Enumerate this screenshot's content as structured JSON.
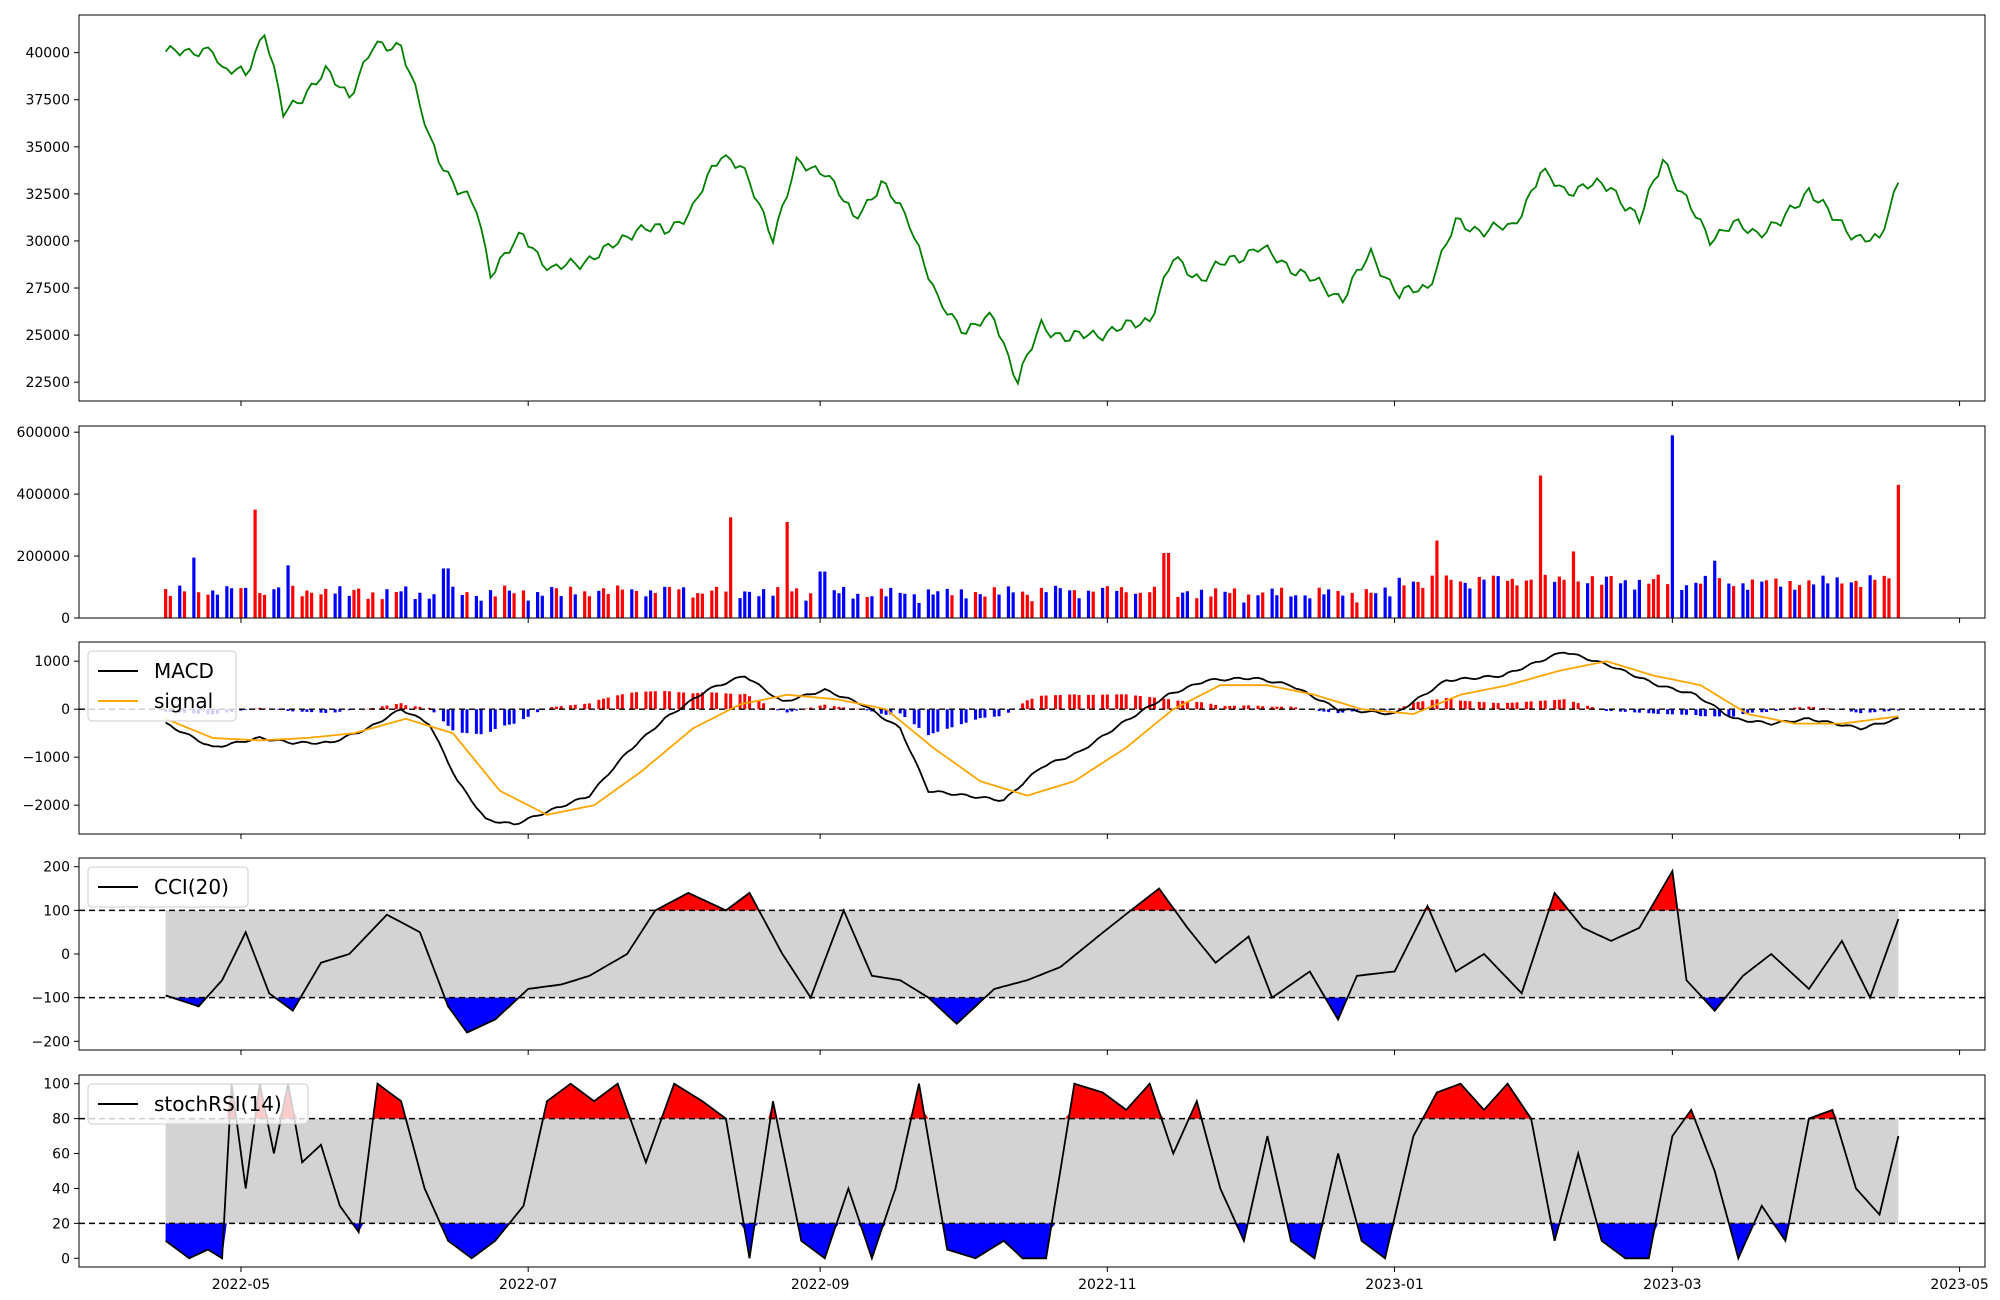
{
  "chart_data": [
    {
      "type": "line",
      "panel": "price",
      "ylim": [
        21500,
        42000
      ],
      "yticks": [
        22500,
        25000,
        27500,
        30000,
        32500,
        35000,
        37500,
        40000
      ],
      "ytick_labels": [
        "22500",
        "25000",
        "27500",
        "30000",
        "32500",
        "35000",
        "37500",
        "40000"
      ],
      "color": "#008000",
      "series": [
        {
          "x_dates": [
            "2022-04-15",
            "2022-04-20",
            "2022-04-25",
            "2022-04-27",
            "2022-05-02",
            "2022-05-06",
            "2022-05-10",
            "2022-05-15",
            "2022-05-19",
            "2022-05-24",
            "2022-05-29",
            "2022-06-04",
            "2022-06-10",
            "2022-06-16",
            "2022-06-20",
            "2022-06-23",
            "2022-06-30",
            "2022-07-06",
            "2022-07-12",
            "2022-07-18",
            "2022-07-24",
            "2022-07-30",
            "2022-08-05",
            "2022-08-11",
            "2022-08-15",
            "2022-08-22",
            "2022-08-27",
            "2022-09-02",
            "2022-09-08",
            "2022-09-14",
            "2022-09-20",
            "2022-09-26",
            "2022-10-02",
            "2022-10-08",
            "2022-10-13",
            "2022-10-18",
            "2022-10-24",
            "2022-10-30",
            "2022-11-05",
            "2022-11-10",
            "2022-11-15",
            "2022-11-21",
            "2022-11-27",
            "2022-12-03",
            "2022-12-09",
            "2022-12-15",
            "2022-12-21",
            "2022-12-27",
            "2023-01-02",
            "2023-01-08",
            "2023-01-14",
            "2023-01-20",
            "2023-01-26",
            "2023-02-01",
            "2023-02-06",
            "2023-02-11",
            "2023-02-16",
            "2023-02-22",
            "2023-02-27",
            "2023-03-03",
            "2023-03-09",
            "2023-03-14",
            "2023-03-19",
            "2023-03-24",
            "2023-03-30",
            "2023-04-04",
            "2023-04-09",
            "2023-04-14",
            "2023-04-18"
          ],
          "values": [
            40300,
            39800,
            40400,
            39000,
            38900,
            41200,
            36700,
            38000,
            38900,
            37800,
            40200,
            40500,
            35400,
            32700,
            31700,
            28400,
            30300,
            28400,
            28900,
            29500,
            30700,
            30500,
            31700,
            34700,
            34000,
            30300,
            34000,
            33800,
            31200,
            33000,
            31100,
            26700,
            25300,
            25900,
            22600,
            25500,
            24800,
            25100,
            25400,
            25900,
            29000,
            28000,
            29000,
            29600,
            28800,
            27800,
            27000,
            29300,
            27100,
            27600,
            30900,
            30600,
            30700,
            33600,
            32700,
            32900,
            32900,
            31000,
            34500,
            32400,
            30200,
            30800,
            30500,
            30900,
            32800,
            31200,
            30300,
            29900,
            33300
          ]
        }
      ]
    },
    {
      "type": "bar",
      "panel": "volume",
      "ylim": [
        0,
        620000
      ],
      "yticks": [
        0,
        200000,
        400000,
        600000
      ],
      "ytick_labels": [
        "0",
        "200000",
        "400000",
        "600000"
      ],
      "up_color": "#ff0000",
      "down_color": "#0000ff",
      "highlights": [
        {
          "date": "2022-04-22",
          "value": 195000,
          "dir": "down"
        },
        {
          "date": "2022-05-05",
          "value": 350000,
          "dir": "up"
        },
        {
          "date": "2022-05-12",
          "value": 170000,
          "dir": "down"
        },
        {
          "date": "2022-06-13",
          "value": 160000,
          "dir": "down"
        },
        {
          "date": "2022-08-14",
          "value": 325000,
          "dir": "up"
        },
        {
          "date": "2022-08-26",
          "value": 310000,
          "dir": "up"
        },
        {
          "date": "2022-09-01",
          "value": 150000,
          "dir": "down"
        },
        {
          "date": "2022-11-13",
          "value": 210000,
          "dir": "up"
        },
        {
          "date": "2023-01-11",
          "value": 250000,
          "dir": "up"
        },
        {
          "date": "2023-02-02",
          "value": 460000,
          "dir": "up"
        },
        {
          "date": "2023-02-09",
          "value": 215000,
          "dir": "up"
        },
        {
          "date": "2023-03-02",
          "value": 590000,
          "dir": "down"
        },
        {
          "date": "2023-03-11",
          "value": 185000,
          "dir": "down"
        },
        {
          "date": "2023-04-18",
          "value": 430000,
          "dir": "up"
        }
      ]
    },
    {
      "type": "line",
      "panel": "macd",
      "ylim": [
        -2600,
        1400
      ],
      "yticks": [
        -2000,
        -1000,
        0,
        1000
      ],
      "ytick_labels": [
        "−2000",
        "−1000",
        "0",
        "1000"
      ],
      "legend": {
        "position": "top-left"
      },
      "series": [
        {
          "name": "MACD",
          "color": "#000000",
          "x_dates": [
            "2022-04-15",
            "2022-04-25",
            "2022-05-05",
            "2022-05-12",
            "2022-05-20",
            "2022-05-28",
            "2022-06-04",
            "2022-06-10",
            "2022-06-16",
            "2022-06-22",
            "2022-06-28",
            "2022-07-06",
            "2022-07-14",
            "2022-07-22",
            "2022-07-30",
            "2022-08-08",
            "2022-08-16",
            "2022-08-24",
            "2022-09-02",
            "2022-09-10",
            "2022-09-18",
            "2022-09-24",
            "2022-10-02",
            "2022-10-10",
            "2022-10-18",
            "2022-10-26",
            "2022-11-04",
            "2022-11-14",
            "2022-11-22",
            "2022-12-02",
            "2022-12-10",
            "2022-12-20",
            "2023-01-01",
            "2023-01-12",
            "2023-01-24",
            "2023-02-06",
            "2023-02-16",
            "2023-02-26",
            "2023-03-06",
            "2023-03-14",
            "2023-03-22",
            "2023-03-30",
            "2023-04-10",
            "2023-04-18"
          ],
          "values": [
            -300,
            -800,
            -600,
            -700,
            -700,
            -400,
            0,
            -300,
            -1500,
            -2300,
            -2400,
            -2100,
            -1800,
            -900,
            -200,
            400,
            700,
            150,
            400,
            100,
            -400,
            -1700,
            -1800,
            -1900,
            -1200,
            -900,
            -300,
            300,
            600,
            650,
            500,
            0,
            -100,
            600,
            700,
            1200,
            900,
            500,
            300,
            -200,
            -300,
            -200,
            -400,
            -200
          ]
        },
        {
          "name": "signal",
          "color": "#ffa500",
          "x_dates": [
            "2022-04-15",
            "2022-04-25",
            "2022-05-05",
            "2022-05-15",
            "2022-05-25",
            "2022-06-05",
            "2022-06-15",
            "2022-06-25",
            "2022-07-05",
            "2022-07-15",
            "2022-07-25",
            "2022-08-05",
            "2022-08-15",
            "2022-08-25",
            "2022-09-05",
            "2022-09-15",
            "2022-09-25",
            "2022-10-05",
            "2022-10-15",
            "2022-10-25",
            "2022-11-05",
            "2022-11-15",
            "2022-11-25",
            "2022-12-05",
            "2022-12-15",
            "2022-12-25",
            "2023-01-05",
            "2023-01-15",
            "2023-01-25",
            "2023-02-05",
            "2023-02-15",
            "2023-02-25",
            "2023-03-07",
            "2023-03-17",
            "2023-03-27",
            "2023-04-06",
            "2023-04-18"
          ],
          "values": [
            -200,
            -600,
            -650,
            -600,
            -500,
            -200,
            -500,
            -1700,
            -2200,
            -2000,
            -1300,
            -400,
            100,
            300,
            200,
            0,
            -800,
            -1500,
            -1800,
            -1500,
            -800,
            0,
            500,
            500,
            300,
            0,
            -100,
            300,
            500,
            800,
            1000,
            700,
            500,
            -100,
            -300,
            -300,
            -150
          ]
        }
      ],
      "histogram_up_color": "#ff0000",
      "histogram_down_color": "#0000ff"
    },
    {
      "type": "line",
      "panel": "cci",
      "ylim": [
        -220,
        220
      ],
      "yticks": [
        -200,
        -100,
        0,
        100,
        200
      ],
      "ytick_labels": [
        "−200",
        "−100",
        "0",
        "100",
        "200"
      ],
      "bands": [
        -100,
        100
      ],
      "legend": {
        "position": "top-left"
      },
      "series": [
        {
          "name": "CCI(20)",
          "color": "#000000",
          "x_dates": [
            "2022-04-15",
            "2022-04-22",
            "2022-04-27",
            "2022-05-02",
            "2022-05-07",
            "2022-05-12",
            "2022-05-18",
            "2022-05-24",
            "2022-06-01",
            "2022-06-08",
            "2022-06-14",
            "2022-06-18",
            "2022-06-24",
            "2022-07-01",
            "2022-07-08",
            "2022-07-14",
            "2022-07-22",
            "2022-07-28",
            "2022-08-04",
            "2022-08-12",
            "2022-08-17",
            "2022-08-24",
            "2022-08-30",
            "2022-09-06",
            "2022-09-12",
            "2022-09-18",
            "2022-09-24",
            "2022-09-30",
            "2022-10-08",
            "2022-10-15",
            "2022-10-22",
            "2022-10-30",
            "2022-11-06",
            "2022-11-12",
            "2022-11-18",
            "2022-11-24",
            "2022-12-01",
            "2022-12-06",
            "2022-12-14",
            "2022-12-20",
            "2022-12-24",
            "2023-01-01",
            "2023-01-08",
            "2023-01-14",
            "2023-01-20",
            "2023-01-28",
            "2023-02-04",
            "2023-02-10",
            "2023-02-16",
            "2023-02-22",
            "2023-03-01",
            "2023-03-04",
            "2023-03-10",
            "2023-03-16",
            "2023-03-22",
            "2023-03-30",
            "2023-04-06",
            "2023-04-12",
            "2023-04-18"
          ],
          "values": [
            -95,
            -120,
            -60,
            50,
            -90,
            -130,
            -20,
            0,
            90,
            50,
            -120,
            -180,
            -150,
            -80,
            -70,
            -50,
            0,
            100,
            140,
            100,
            140,
            0,
            -100,
            100,
            -50,
            -60,
            -100,
            -160,
            -80,
            -60,
            -30,
            40,
            100,
            150,
            60,
            -20,
            40,
            -100,
            -40,
            -150,
            -50,
            -40,
            110,
            -40,
            0,
            -90,
            140,
            60,
            30,
            60,
            190,
            -60,
            -130,
            -50,
            0,
            -80,
            30,
            -100,
            80
          ]
        }
      ],
      "overbought_color": "#ff0000",
      "oversold_color": "#0000ff",
      "band_fill_color": "#d3d3d3"
    },
    {
      "type": "line",
      "panel": "stochrsi",
      "ylim": [
        -5,
        105
      ],
      "yticks": [
        0,
        20,
        40,
        60,
        80,
        100
      ],
      "ytick_labels": [
        "0",
        "20",
        "40",
        "60",
        "80",
        "100"
      ],
      "bands": [
        20,
        80
      ],
      "legend": {
        "position": "top-left"
      },
      "series": [
        {
          "name": "stochRSI(14)",
          "color": "#000000",
          "x_dates": [
            "2022-04-15",
            "2022-04-20",
            "2022-04-24",
            "2022-04-27",
            "2022-04-29",
            "2022-05-02",
            "2022-05-05",
            "2022-05-08",
            "2022-05-11",
            "2022-05-14",
            "2022-05-18",
            "2022-05-22",
            "2022-05-26",
            "2022-05-30",
            "2022-06-04",
            "2022-06-09",
            "2022-06-14",
            "2022-06-19",
            "2022-06-24",
            "2022-06-30",
            "2022-07-05",
            "2022-07-10",
            "2022-07-15",
            "2022-07-20",
            "2022-07-26",
            "2022-08-01",
            "2022-08-07",
            "2022-08-12",
            "2022-08-17",
            "2022-08-22",
            "2022-08-28",
            "2022-09-02",
            "2022-09-07",
            "2022-09-12",
            "2022-09-17",
            "2022-09-22",
            "2022-09-28",
            "2022-10-04",
            "2022-10-10",
            "2022-10-14",
            "2022-10-19",
            "2022-10-25",
            "2022-10-31",
            "2022-11-05",
            "2022-11-10",
            "2022-11-15",
            "2022-11-20",
            "2022-11-25",
            "2022-11-30",
            "2022-12-05",
            "2022-12-10",
            "2022-12-15",
            "2022-12-20",
            "2022-12-25",
            "2022-12-30",
            "2023-01-05",
            "2023-01-10",
            "2023-01-15",
            "2023-01-20",
            "2023-01-25",
            "2023-01-30",
            "2023-02-04",
            "2023-02-09",
            "2023-02-14",
            "2023-02-19",
            "2023-02-24",
            "2023-03-01",
            "2023-03-05",
            "2023-03-10",
            "2023-03-15",
            "2023-03-20",
            "2023-03-25",
            "2023-03-30",
            "2023-04-04",
            "2023-04-09",
            "2023-04-14",
            "2023-04-18"
          ],
          "values": [
            10,
            0,
            5,
            0,
            100,
            40,
            100,
            60,
            100,
            55,
            65,
            30,
            15,
            100,
            90,
            40,
            10,
            0,
            10,
            30,
            90,
            100,
            90,
            100,
            55,
            100,
            90,
            80,
            0,
            90,
            10,
            0,
            40,
            0,
            40,
            100,
            5,
            0,
            10,
            0,
            0,
            100,
            95,
            85,
            100,
            60,
            90,
            40,
            10,
            70,
            10,
            0,
            60,
            10,
            0,
            70,
            95,
            100,
            85,
            100,
            80,
            10,
            60,
            10,
            0,
            0,
            70,
            85,
            50,
            0,
            30,
            10,
            80,
            85,
            40,
            25,
            70
          ]
        }
      ],
      "overbought_color": "#ff0000",
      "oversold_color": "#0000ff",
      "band_fill_color": "#d3d3d3"
    }
  ],
  "x_axis": {
    "start": "2022-04-15",
    "end": "2023-04-18",
    "ticks": [
      "2022-05-01",
      "2022-07-01",
      "2022-09-01",
      "2022-11-01",
      "2023-01-01",
      "2023-03-01",
      "2023-05-01"
    ],
    "tick_labels": [
      "2022-05",
      "2022-07",
      "2022-09",
      "2022-11",
      "2023-01",
      "2023-03",
      "2023-05"
    ]
  }
}
